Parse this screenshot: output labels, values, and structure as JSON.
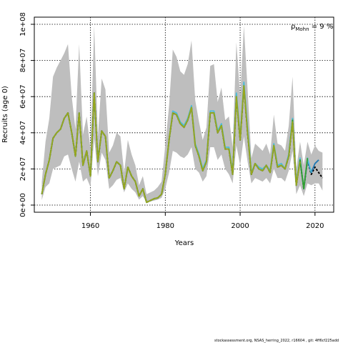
{
  "chart_data": {
    "type": "line",
    "title": "",
    "xlabel": "Years",
    "ylabel": "Recruits (age 0)",
    "xlim": [
      1945,
      2025
    ],
    "ylim": [
      0,
      100000000
    ],
    "x_ticks": [
      1960,
      1980,
      2000,
      2020
    ],
    "x_tick_labels": [
      "1960",
      "1980",
      "2000",
      "2020"
    ],
    "y_ticks": [
      0,
      20000000,
      40000000,
      60000000,
      80000000,
      100000000
    ],
    "y_tick_labels": [
      "0e+00",
      "2e+07",
      "4e+07",
      "6e+07",
      "8e+07",
      "1e+08"
    ],
    "grid": true,
    "annotation": {
      "symbol": "ρ",
      "subscript": "Mohn",
      "text": " = 9 %"
    },
    "footer": "stockassessment.org, NSAS_herring_2022, r16604 , git: 4ff6cf225add",
    "band_color": "#bebebe",
    "years": [
      1947,
      1948,
      1949,
      1950,
      1951,
      1952,
      1953,
      1954,
      1955,
      1956,
      1957,
      1958,
      1959,
      1960,
      1961,
      1962,
      1963,
      1964,
      1965,
      1966,
      1967,
      1968,
      1969,
      1970,
      1971,
      1972,
      1973,
      1974,
      1975,
      1976,
      1977,
      1978,
      1979,
      1980,
      1981,
      1982,
      1983,
      1984,
      1985,
      1986,
      1987,
      1988,
      1989,
      1990,
      1991,
      1992,
      1993,
      1994,
      1995,
      1996,
      1997,
      1998,
      1999,
      2000,
      2001,
      2002,
      2003,
      2004,
      2005,
      2006,
      2007,
      2008,
      2009,
      2010,
      2011,
      2012,
      2013,
      2014,
      2015,
      2016,
      2017,
      2018,
      2019,
      2020,
      2021,
      2022
    ],
    "lower": [
      2800000,
      10000000,
      12000000,
      20000000,
      21000000,
      22000000,
      27000000,
      28000000,
      20000000,
      13000000,
      24000000,
      13000000,
      15000000,
      10000000,
      37000000,
      16000000,
      29000000,
      25000000,
      9000000,
      11000000,
      14000000,
      15000000,
      7000000,
      12000000,
      9000000,
      7000000,
      3000000,
      5000000,
      1500000,
      2000000,
      2500000,
      3000000,
      4000000,
      9000000,
      18000000,
      30000000,
      29000000,
      27000000,
      26000000,
      28000000,
      32000000,
      20000000,
      18000000,
      13000000,
      16000000,
      32000000,
      32000000,
      25000000,
      28000000,
      20000000,
      17000000,
      12000000,
      33000000,
      22000000,
      38000000,
      24000000,
      12000000,
      15000000,
      14000000,
      13000000,
      15000000,
      12000000,
      20000000,
      15000000,
      15000000,
      13000000,
      19000000,
      30000000,
      6000000,
      11000000,
      5000000,
      12000000,
      11000000,
      12000000,
      12000000,
      8000000
    ],
    "upper": [
      13000000,
      35000000,
      48000000,
      71000000,
      76000000,
      80000000,
      84000000,
      89000000,
      60000000,
      42000000,
      89000000,
      39000000,
      49000000,
      31000000,
      99000000,
      38000000,
      70000000,
      64000000,
      29000000,
      33000000,
      40000000,
      38000000,
      18000000,
      36000000,
      28000000,
      22000000,
      11000000,
      16000000,
      6000000,
      7000000,
      8000000,
      10000000,
      13000000,
      33000000,
      55000000,
      86000000,
      82000000,
      74000000,
      72000000,
      78000000,
      91000000,
      58000000,
      46000000,
      36000000,
      43000000,
      77000000,
      78000000,
      57000000,
      65000000,
      47000000,
      49000000,
      32000000,
      90000000,
      60000000,
      99000000,
      64000000,
      26000000,
      34000000,
      32000000,
      30000000,
      34000000,
      28000000,
      50000000,
      34000000,
      33000000,
      30000000,
      44000000,
      71000000,
      20000000,
      35000000,
      22000000,
      35000000,
      28000000,
      33000000,
      30000000,
      29000000
    ],
    "series": [
      {
        "name": "",
        "color": "#000000",
        "values": [
          6000000,
          17000000,
          25000000,
          37000000,
          40000000,
          42000000,
          48000000,
          51000000,
          40000000,
          27000000,
          51000000,
          22000000,
          30000000,
          16000000,
          62000000,
          24000000,
          41000000,
          38000000,
          15000000,
          19000000,
          24000000,
          22000000,
          9000000,
          21000000,
          16000000,
          13000000,
          5000000,
          9000000,
          1500000,
          2500000,
          3500000,
          4000000,
          6000000,
          17000000,
          36000000,
          51000000,
          50000000,
          45000000,
          43000000,
          47000000,
          54000000,
          33000000,
          27000000,
          19000000,
          24000000,
          51000000,
          51000000,
          40000000,
          44000000,
          31000000,
          31000000,
          17000000,
          60000000,
          36000000,
          66000000,
          40000000,
          17000000,
          23000000,
          20000000,
          19000000,
          22000000,
          18000000,
          33000000,
          21000000,
          22000000,
          20000000,
          27000000,
          47000000,
          11000000,
          25000000,
          9000000,
          25000000,
          17000000,
          21000000,
          18000000,
          15000000
        ]
      },
      {
        "name": "",
        "color": "#1f78b4",
        "values": [
          6000000,
          17000000,
          25000000,
          37000000,
          40000000,
          42000000,
          48000000,
          51000000,
          40000000,
          27000000,
          51000000,
          22000000,
          30000000,
          16000000,
          62000000,
          24000000,
          41000000,
          38000000,
          15000000,
          19000000,
          24000000,
          22000000,
          9000000,
          21000000,
          16000000,
          13000000,
          5000000,
          9000000,
          1500000,
          2500000,
          3500000,
          4000000,
          6000000,
          17000000,
          36000000,
          51000000,
          50000000,
          45000000,
          43000000,
          47000000,
          54000000,
          33000000,
          27000000,
          19000000,
          24000000,
          51000000,
          51000000,
          40000000,
          44000000,
          31000000,
          31000000,
          17000000,
          61000000,
          36000000,
          67000000,
          41000000,
          17000000,
          23000000,
          20000000,
          19000000,
          22000000,
          18000000,
          33000000,
          21000000,
          22000000,
          20000000,
          28000000,
          47000000,
          11000000,
          25000000,
          9000000,
          25000000,
          18000000,
          23000000,
          25000000
        ]
      },
      {
        "name": "",
        "color": "#4dbcd8",
        "values": [
          6000000,
          17000000,
          25000000,
          37000000,
          40000000,
          42000000,
          48000000,
          51000000,
          40000000,
          27000000,
          51000000,
          22000000,
          30000000,
          16000000,
          62000000,
          24000000,
          41000000,
          38000000,
          15000000,
          19000000,
          24000000,
          22000000,
          9000000,
          21000000,
          16000000,
          13000000,
          5000000,
          9000000,
          1500000,
          2500000,
          3500000,
          4000000,
          6000000,
          17000000,
          36000000,
          52000000,
          51000000,
          46000000,
          44000000,
          48000000,
          55000000,
          34000000,
          28000000,
          20000000,
          25000000,
          52000000,
          52000000,
          41000000,
          45000000,
          32000000,
          32000000,
          18000000,
          62000000,
          37000000,
          68000000,
          42000000,
          18000000,
          23000000,
          21000000,
          20000000,
          22000000,
          19000000,
          34000000,
          22000000,
          23000000,
          20000000,
          28000000,
          48000000,
          11000000,
          26000000,
          9000000,
          26000000,
          18000000
        ]
      },
      {
        "name": "",
        "color": "#33a02c",
        "values": [
          6000000,
          17000000,
          25000000,
          37000000,
          40000000,
          42000000,
          48000000,
          51000000,
          40000000,
          27000000,
          51000000,
          22000000,
          30000000,
          16000000,
          62000000,
          24000000,
          41000000,
          38000000,
          15000000,
          19000000,
          24000000,
          22000000,
          9000000,
          21000000,
          16000000,
          13000000,
          5000000,
          9000000,
          1500000,
          2500000,
          3500000,
          4000000,
          6000000,
          17000000,
          36000000,
          51000000,
          50000000,
          45000000,
          43000000,
          47000000,
          54000000,
          33000000,
          27000000,
          19000000,
          24000000,
          51000000,
          51000000,
          40000000,
          44000000,
          31000000,
          31000000,
          17000000,
          60000000,
          36000000,
          66000000,
          40000000,
          17000000,
          23000000,
          20000000,
          19000000,
          22000000,
          18000000,
          33000000,
          21000000,
          22000000,
          20000000,
          27000000,
          47000000,
          11000000,
          25000000,
          9000000,
          26000000
        ]
      },
      {
        "name": "",
        "color": "#9aa61e",
        "values": [
          6000000,
          17000000,
          25000000,
          37000000,
          40000000,
          42000000,
          48000000,
          51000000,
          40000000,
          27000000,
          51000000,
          22000000,
          30000000,
          16000000,
          62000000,
          24000000,
          41000000,
          38000000,
          15000000,
          19000000,
          24000000,
          22000000,
          9000000,
          21000000,
          16000000,
          13000000,
          5000000,
          9000000,
          1500000,
          2500000,
          3500000,
          4000000,
          6000000,
          17000000,
          36000000,
          51000000,
          50000000,
          45000000,
          43000000,
          47000000,
          54000000,
          33000000,
          27000000,
          19000000,
          24000000,
          51000000,
          51000000,
          40000000,
          44000000,
          31000000,
          31000000,
          17000000,
          60000000,
          36000000,
          66000000,
          40000000,
          17000000,
          23000000,
          20000000,
          19000000,
          22000000,
          18000000,
          33000000,
          21000000,
          22000000,
          20000000,
          27000000,
          46000000,
          11000000,
          24000000
        ]
      }
    ]
  }
}
